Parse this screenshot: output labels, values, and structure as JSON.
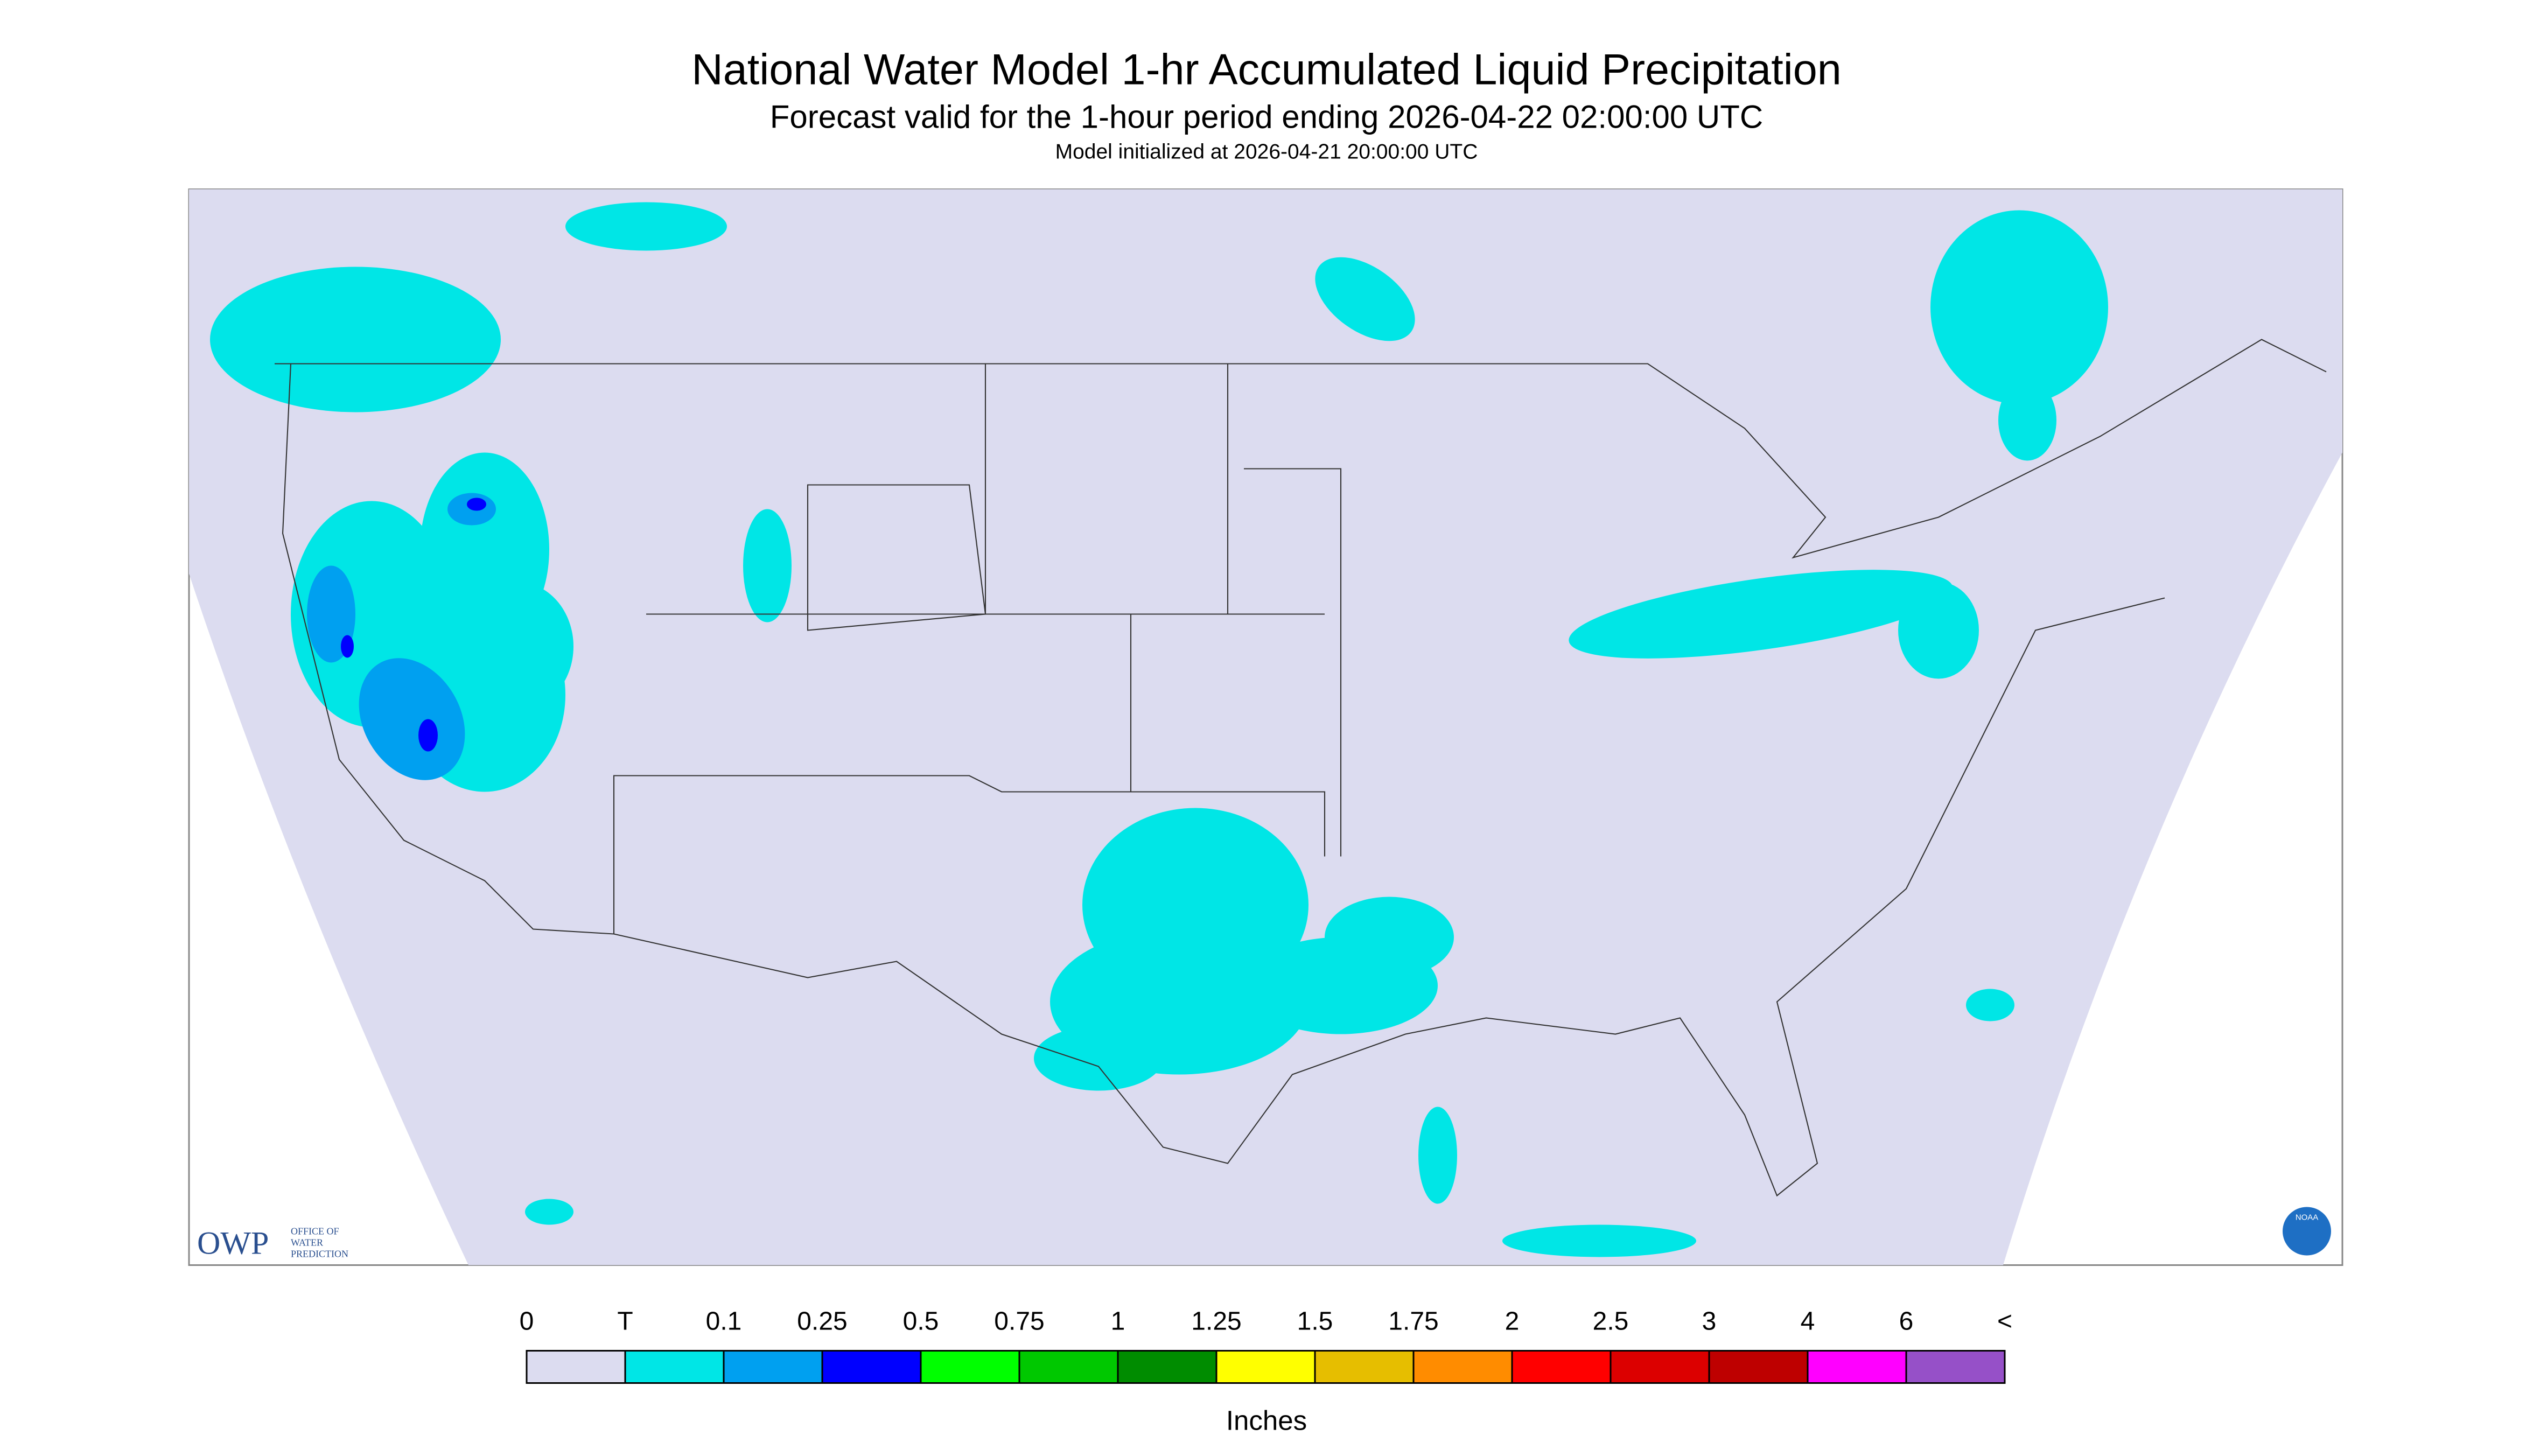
{
  "header": {
    "title": "National Water Model 1-hr Accumulated Liquid Precipitation",
    "subtitle": "Forecast valid for the 1-hour period ending 2026-04-22 02:00:00 UTC",
    "init": "Model initialized at 2026-04-21 20:00:00 UTC"
  },
  "legend": {
    "labels": [
      "0",
      "T",
      "0.1",
      "0.25",
      "0.5",
      "0.75",
      "1",
      "1.25",
      "1.5",
      "1.75",
      "2",
      "2.5",
      "3",
      "4",
      "6",
      "<"
    ],
    "colors": [
      "#dcdcf0",
      "#00e6e6",
      "#00a0f0",
      "#0000ff",
      "#00ff00",
      "#00c800",
      "#008c00",
      "#ffff00",
      "#e6be00",
      "#ff8c00",
      "#ff0000",
      "#dc0000",
      "#be0000",
      "#ff00ff",
      "#9650c8"
    ],
    "unit": "Inches"
  },
  "logos": {
    "owp": "OWP",
    "owp_lines": [
      "OFFICE OF",
      "WATER",
      "PREDICTION"
    ],
    "noaa": "NOAA"
  }
}
